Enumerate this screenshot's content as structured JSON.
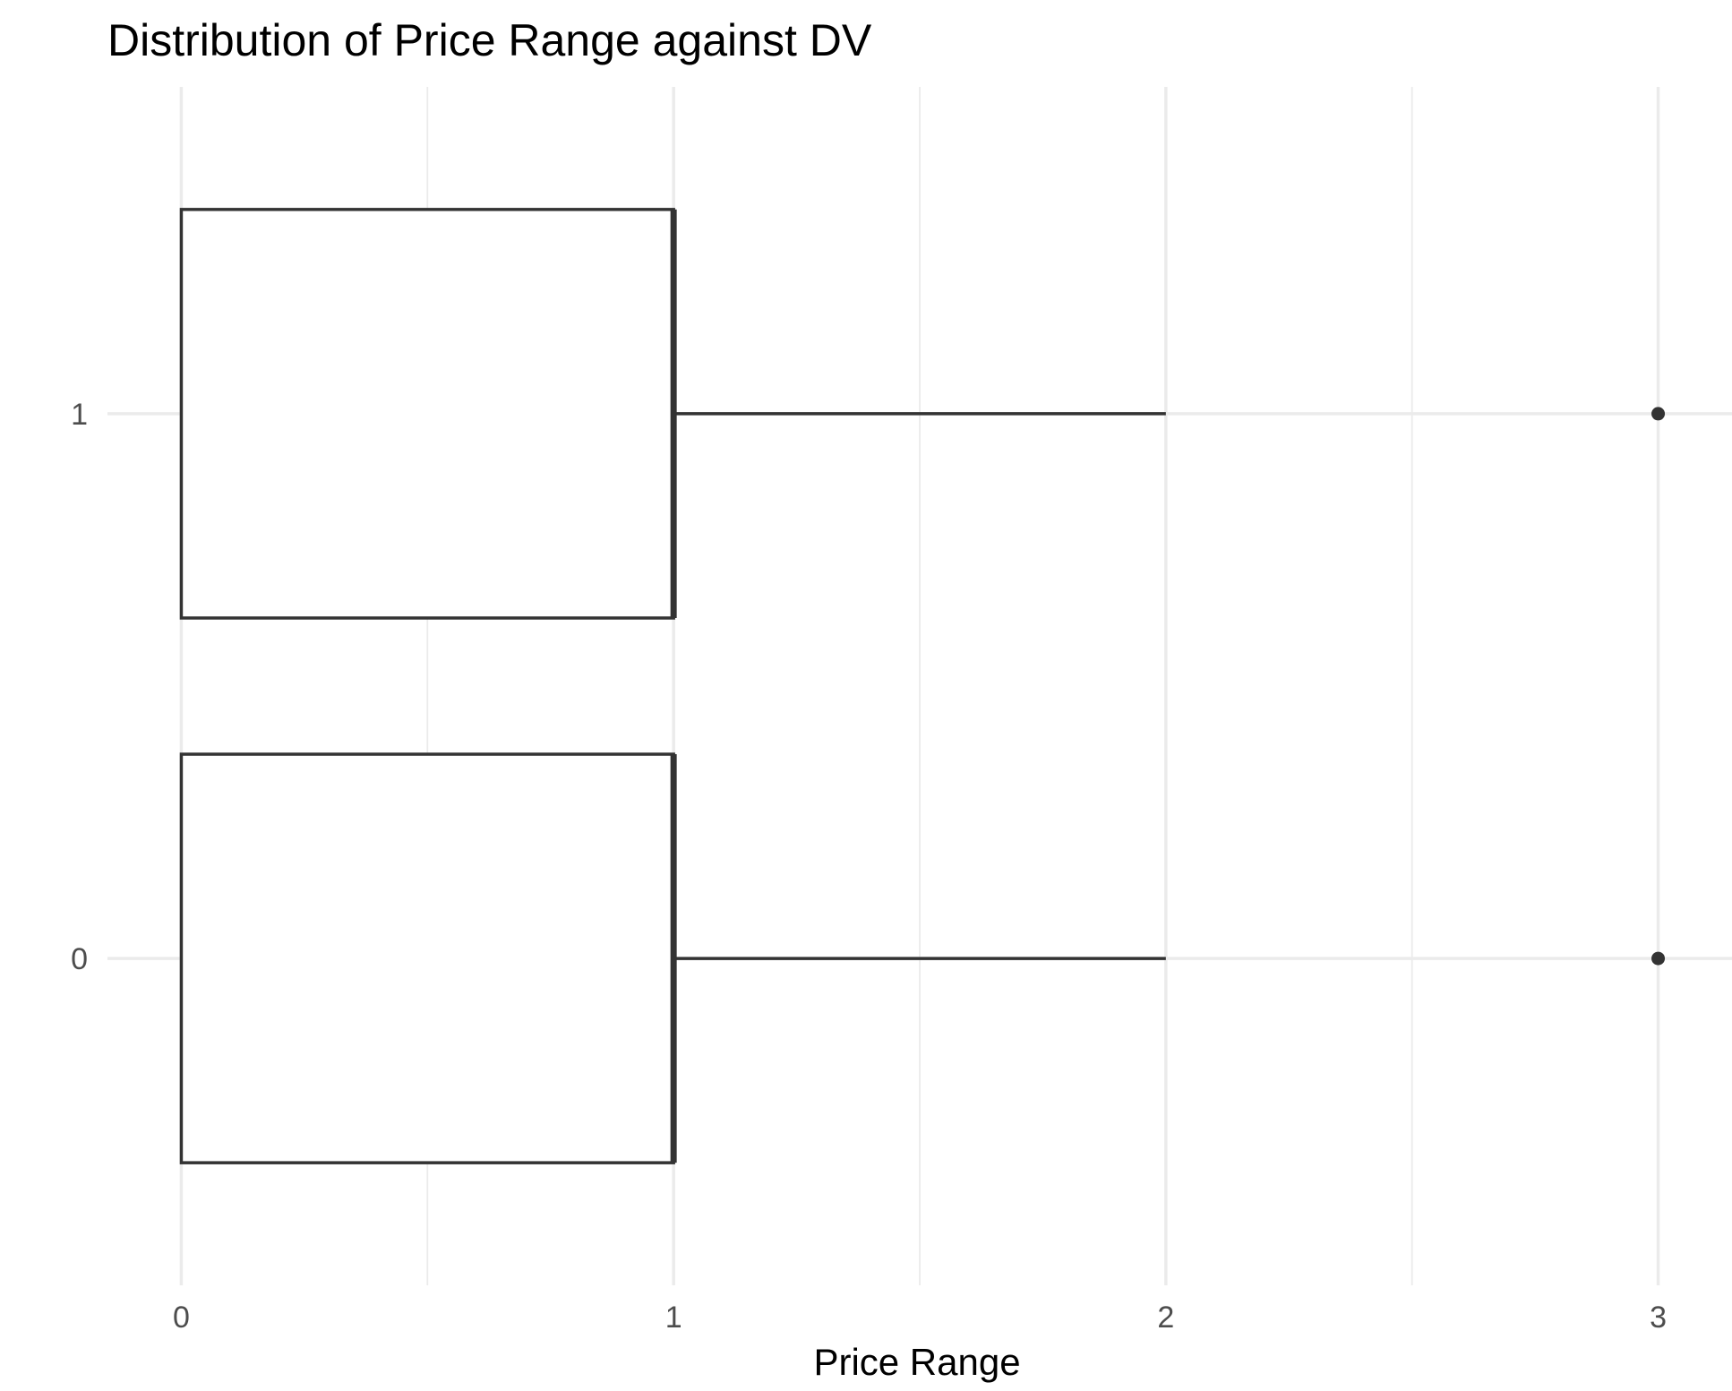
{
  "chart_data": {
    "type": "boxplot",
    "orientation": "horizontal",
    "title": "Distribution of Price Range against DV",
    "xlabel": "Price Range",
    "ylabel": "",
    "xlim": [
      -0.15,
      3.15
    ],
    "x_ticks": [
      0,
      1,
      2,
      3
    ],
    "x_tick_labels": [
      "0",
      "1",
      "2",
      "3"
    ],
    "categories": [
      "0",
      "1"
    ],
    "grid": true,
    "legend": "none",
    "colors": {
      "box_stroke": "#333333",
      "box_fill": "#ffffff",
      "grid": "#ebebeb",
      "tick_text": "#4d4d4d"
    },
    "boxes": [
      {
        "category": "0",
        "whisker_low": 0,
        "q1": 0,
        "median": 1,
        "q3": 1,
        "whisker_high": 2,
        "outliers": [
          3
        ]
      },
      {
        "category": "1",
        "whisker_low": 0,
        "q1": 0,
        "median": 1,
        "q3": 1,
        "whisker_high": 2,
        "outliers": [
          3
        ]
      }
    ]
  }
}
